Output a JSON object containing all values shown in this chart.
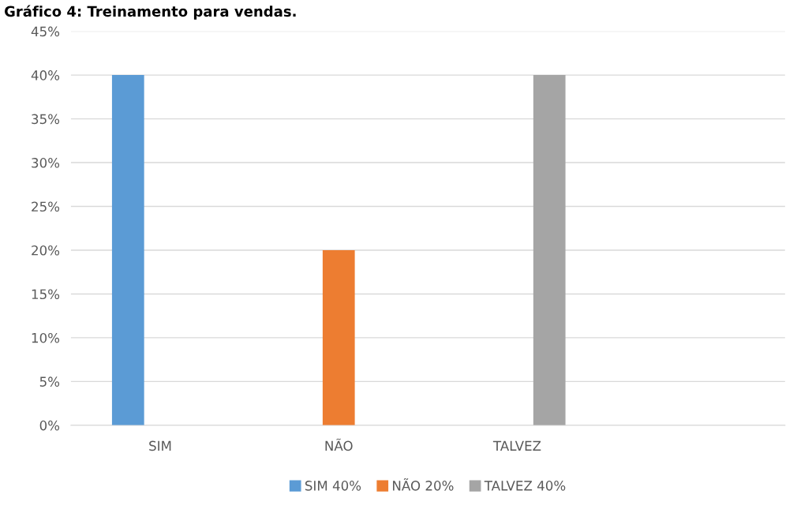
{
  "chart_data": {
    "type": "bar",
    "title": "Gráfico 4: Treinamento para vendas.",
    "categories": [
      "SIM",
      "NÃO",
      "TALVEZ",
      null
    ],
    "series": [
      {
        "name": "SIM 40%",
        "color": "#5b9bd5",
        "values": [
          40,
          null,
          null,
          null
        ]
      },
      {
        "name": "NÃO 20%",
        "color": "#ed7d31",
        "values": [
          null,
          20,
          null,
          null
        ]
      },
      {
        "name": "TALVEZ 40%",
        "color": "#a5a5a5",
        "values": [
          null,
          null,
          40,
          null
        ]
      }
    ],
    "ylim": [
      0,
      45
    ],
    "yticks": [
      {
        "value": 0,
        "label": "0%"
      },
      {
        "value": 5,
        "label": "5%"
      },
      {
        "value": 10,
        "label": "10%"
      },
      {
        "value": 15,
        "label": "15%"
      },
      {
        "value": 20,
        "label": "20%"
      },
      {
        "value": 25,
        "label": "25%"
      },
      {
        "value": 30,
        "label": "30%"
      },
      {
        "value": 35,
        "label": "35%"
      },
      {
        "value": 40,
        "label": "40%"
      },
      {
        "value": 45,
        "label": "45%"
      }
    ],
    "grid": "y",
    "legend": "bottom"
  }
}
